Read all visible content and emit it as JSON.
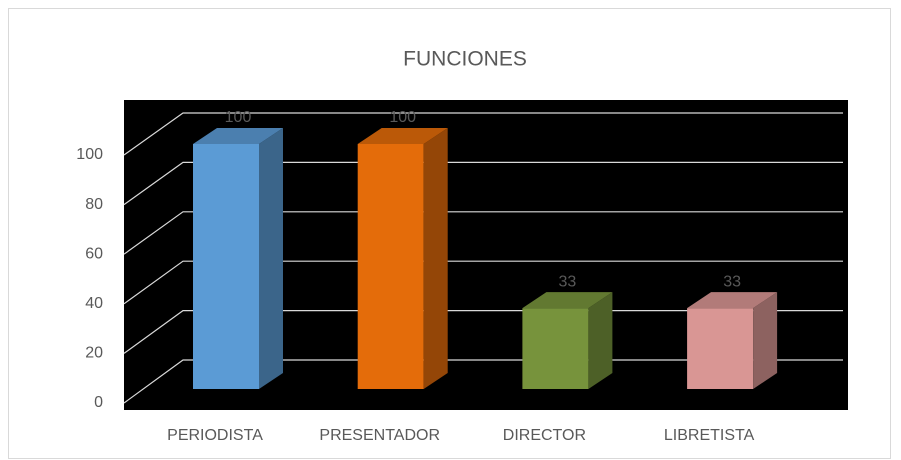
{
  "chart_data": {
    "type": "bar3d",
    "title": "FUNCIONES",
    "categories": [
      "PERIODISTA",
      "PRESENTADOR",
      "DIRECTOR",
      "LIBRETISTA"
    ],
    "values": [
      100,
      100,
      33,
      33
    ],
    "colors": [
      "#5b9bd5",
      "#e46c0a",
      "#77933c",
      "#d99694"
    ],
    "ylim": [
      0,
      100
    ],
    "yticks": [
      0,
      20,
      40,
      60,
      80,
      100
    ],
    "grid": true
  }
}
